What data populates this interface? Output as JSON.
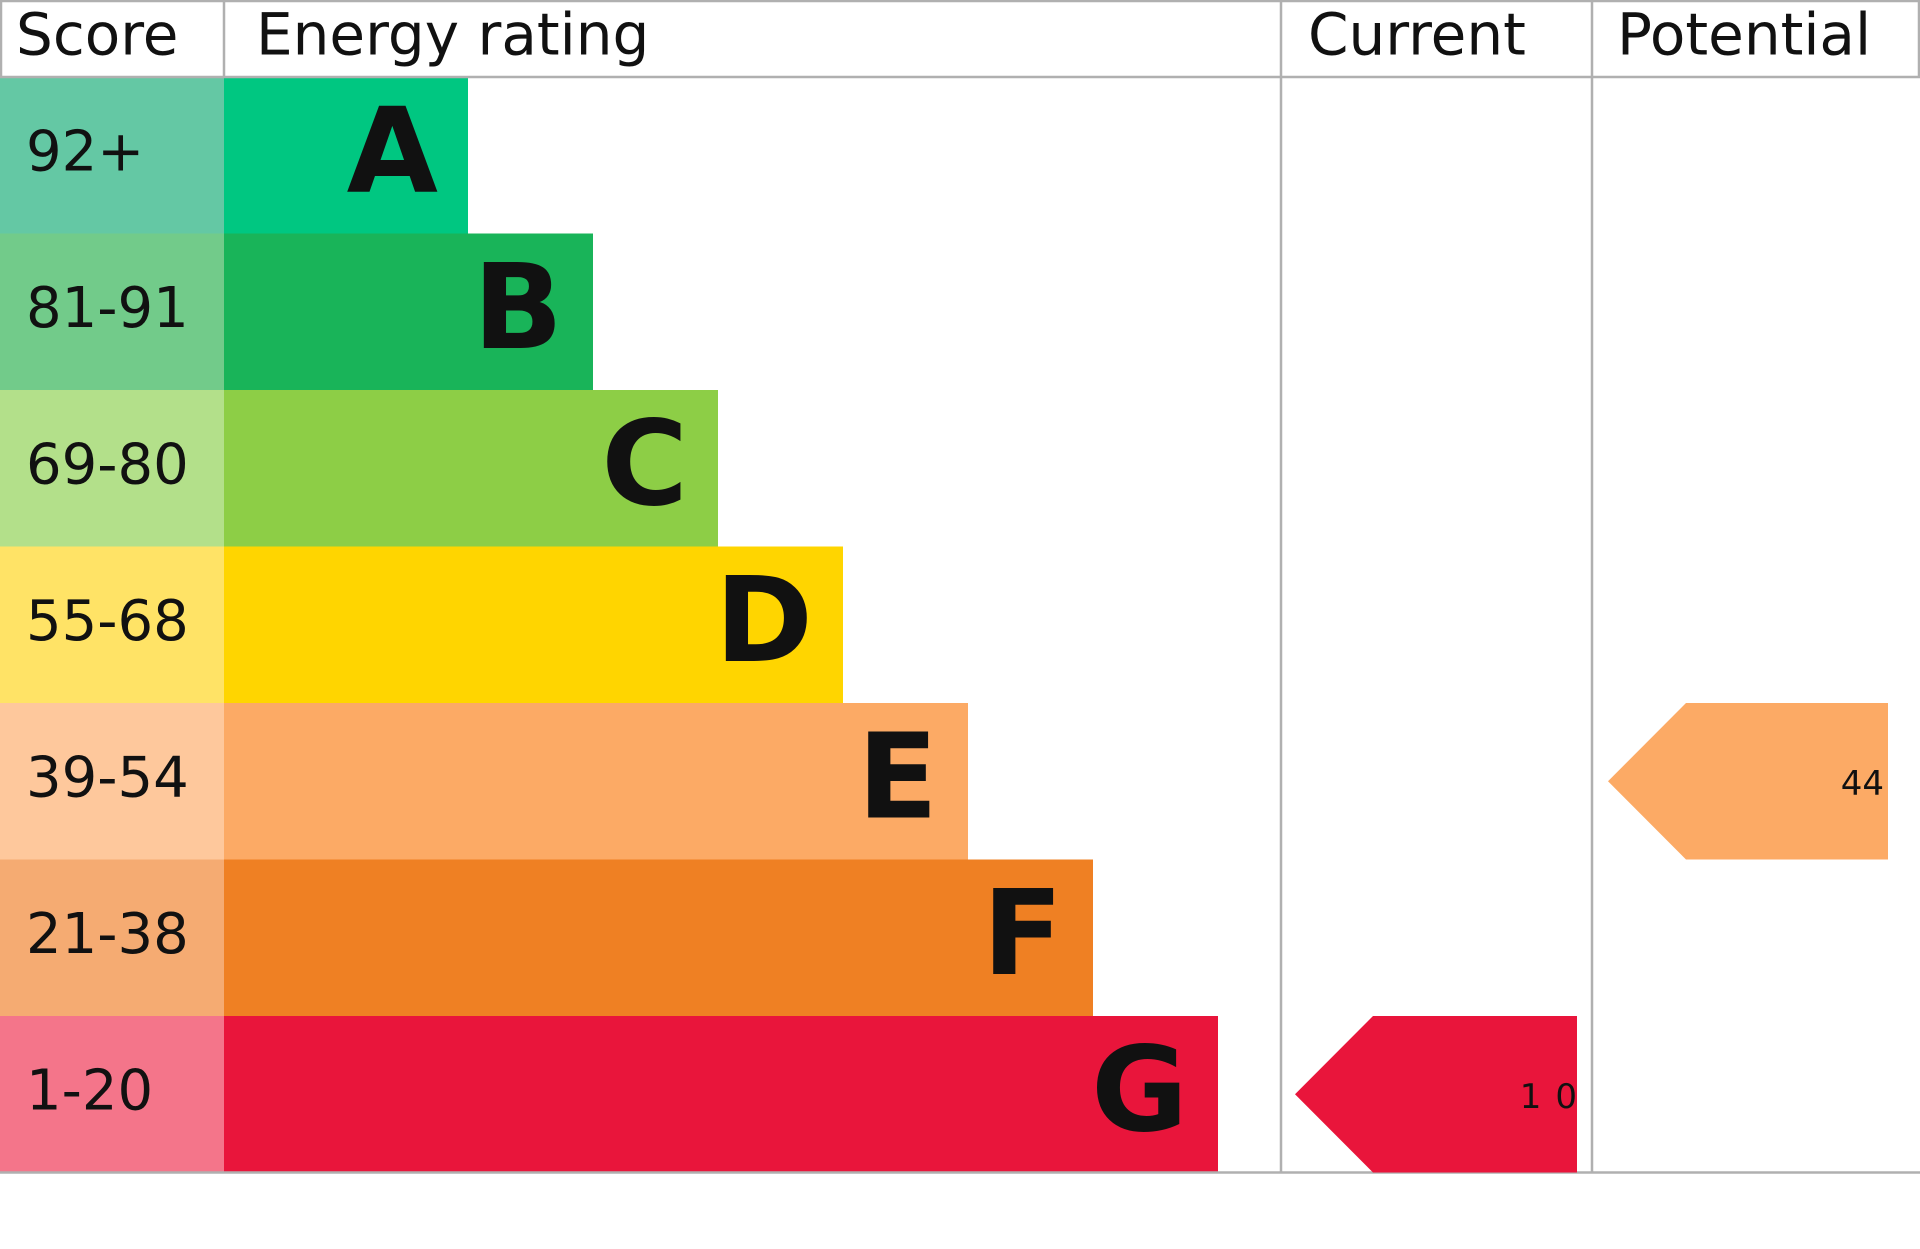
{
  "chart_data": {
    "type": "epc",
    "headers": [
      "Score",
      "Energy rating",
      "Current",
      "Potential"
    ],
    "bands": [
      {
        "score": "92+",
        "letter": "A",
        "color": "#00c781",
        "score_color": "#64c8a4"
      },
      {
        "score": "81-91",
        "letter": "B",
        "color": "#19b459",
        "score_color": "#72cb8a"
      },
      {
        "score": "69-80",
        "letter": "C",
        "color": "#8dce46",
        "score_color": "#b3e08a"
      },
      {
        "score": "55-68",
        "letter": "D",
        "color": "#ffd500",
        "score_color": "#ffe366"
      },
      {
        "score": "39-54",
        "letter": "E",
        "color": "#fcaa65",
        "score_color": "#fec89c"
      },
      {
        "score": "21-38",
        "letter": "F",
        "color": "#ef8023",
        "score_color": "#f5ab72"
      },
      {
        "score": "1-20",
        "letter": "G",
        "color": "#e9153b",
        "score_color": "#f4758a"
      }
    ],
    "current": 10,
    "potential": 44
  }
}
